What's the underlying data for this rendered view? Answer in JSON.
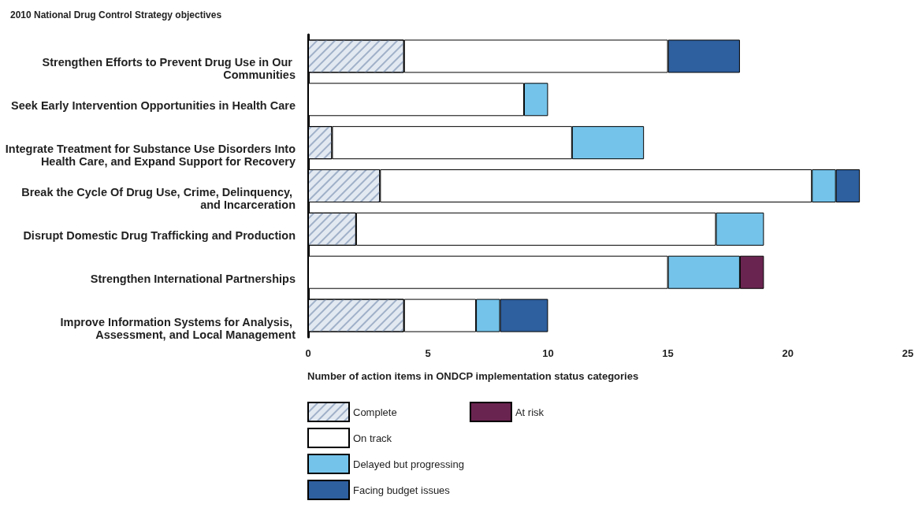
{
  "chart_data": {
    "type": "bar",
    "orientation": "horizontal",
    "stacked": true,
    "title": "2010 National Drug Control Strategy objectives",
    "xlabel": "Number of action items in ONDCP implementation status categories",
    "categories": [
      "Strengthen Efforts to Prevent Drug Use in Our Communities",
      "Seek Early Intervention Opportunities in Health Care",
      "Integrate Treatment for Substance Use Disorders Into Health Care, and Expand Support for Recovery",
      "Break the Cycle Of Drug Use, Crime, Delinquency, and Incarceration",
      "Disrupt Domestic Drug Trafficking and Production",
      "Strengthen International Partnerships",
      "Improve Information Systems for Analysis, Assessment, and Local Management"
    ],
    "series": [
      {
        "name": "Complete",
        "color": "#e3e9f1",
        "values": [
          4,
          null,
          1,
          3,
          2,
          null,
          4
        ]
      },
      {
        "name": "On track",
        "color": "#ffffff",
        "values": [
          11,
          9,
          10,
          18,
          15,
          15,
          3
        ]
      },
      {
        "name": "Delayed but progressing",
        "color": "#74c3ea",
        "values": [
          null,
          1,
          3,
          1,
          2,
          3,
          1
        ]
      },
      {
        "name": "Facing budget issues",
        "color": "#2e5f9e",
        "values": [
          3,
          null,
          null,
          1,
          null,
          null,
          2
        ]
      },
      {
        "name": "At risk",
        "color": "#6a2450",
        "values": [
          null,
          null,
          null,
          null,
          null,
          1,
          null
        ]
      }
    ],
    "xlim": [
      0,
      25
    ],
    "xticks": [
      0,
      5,
      10,
      15,
      20,
      25
    ],
    "grid": false,
    "legend": "bottom"
  }
}
